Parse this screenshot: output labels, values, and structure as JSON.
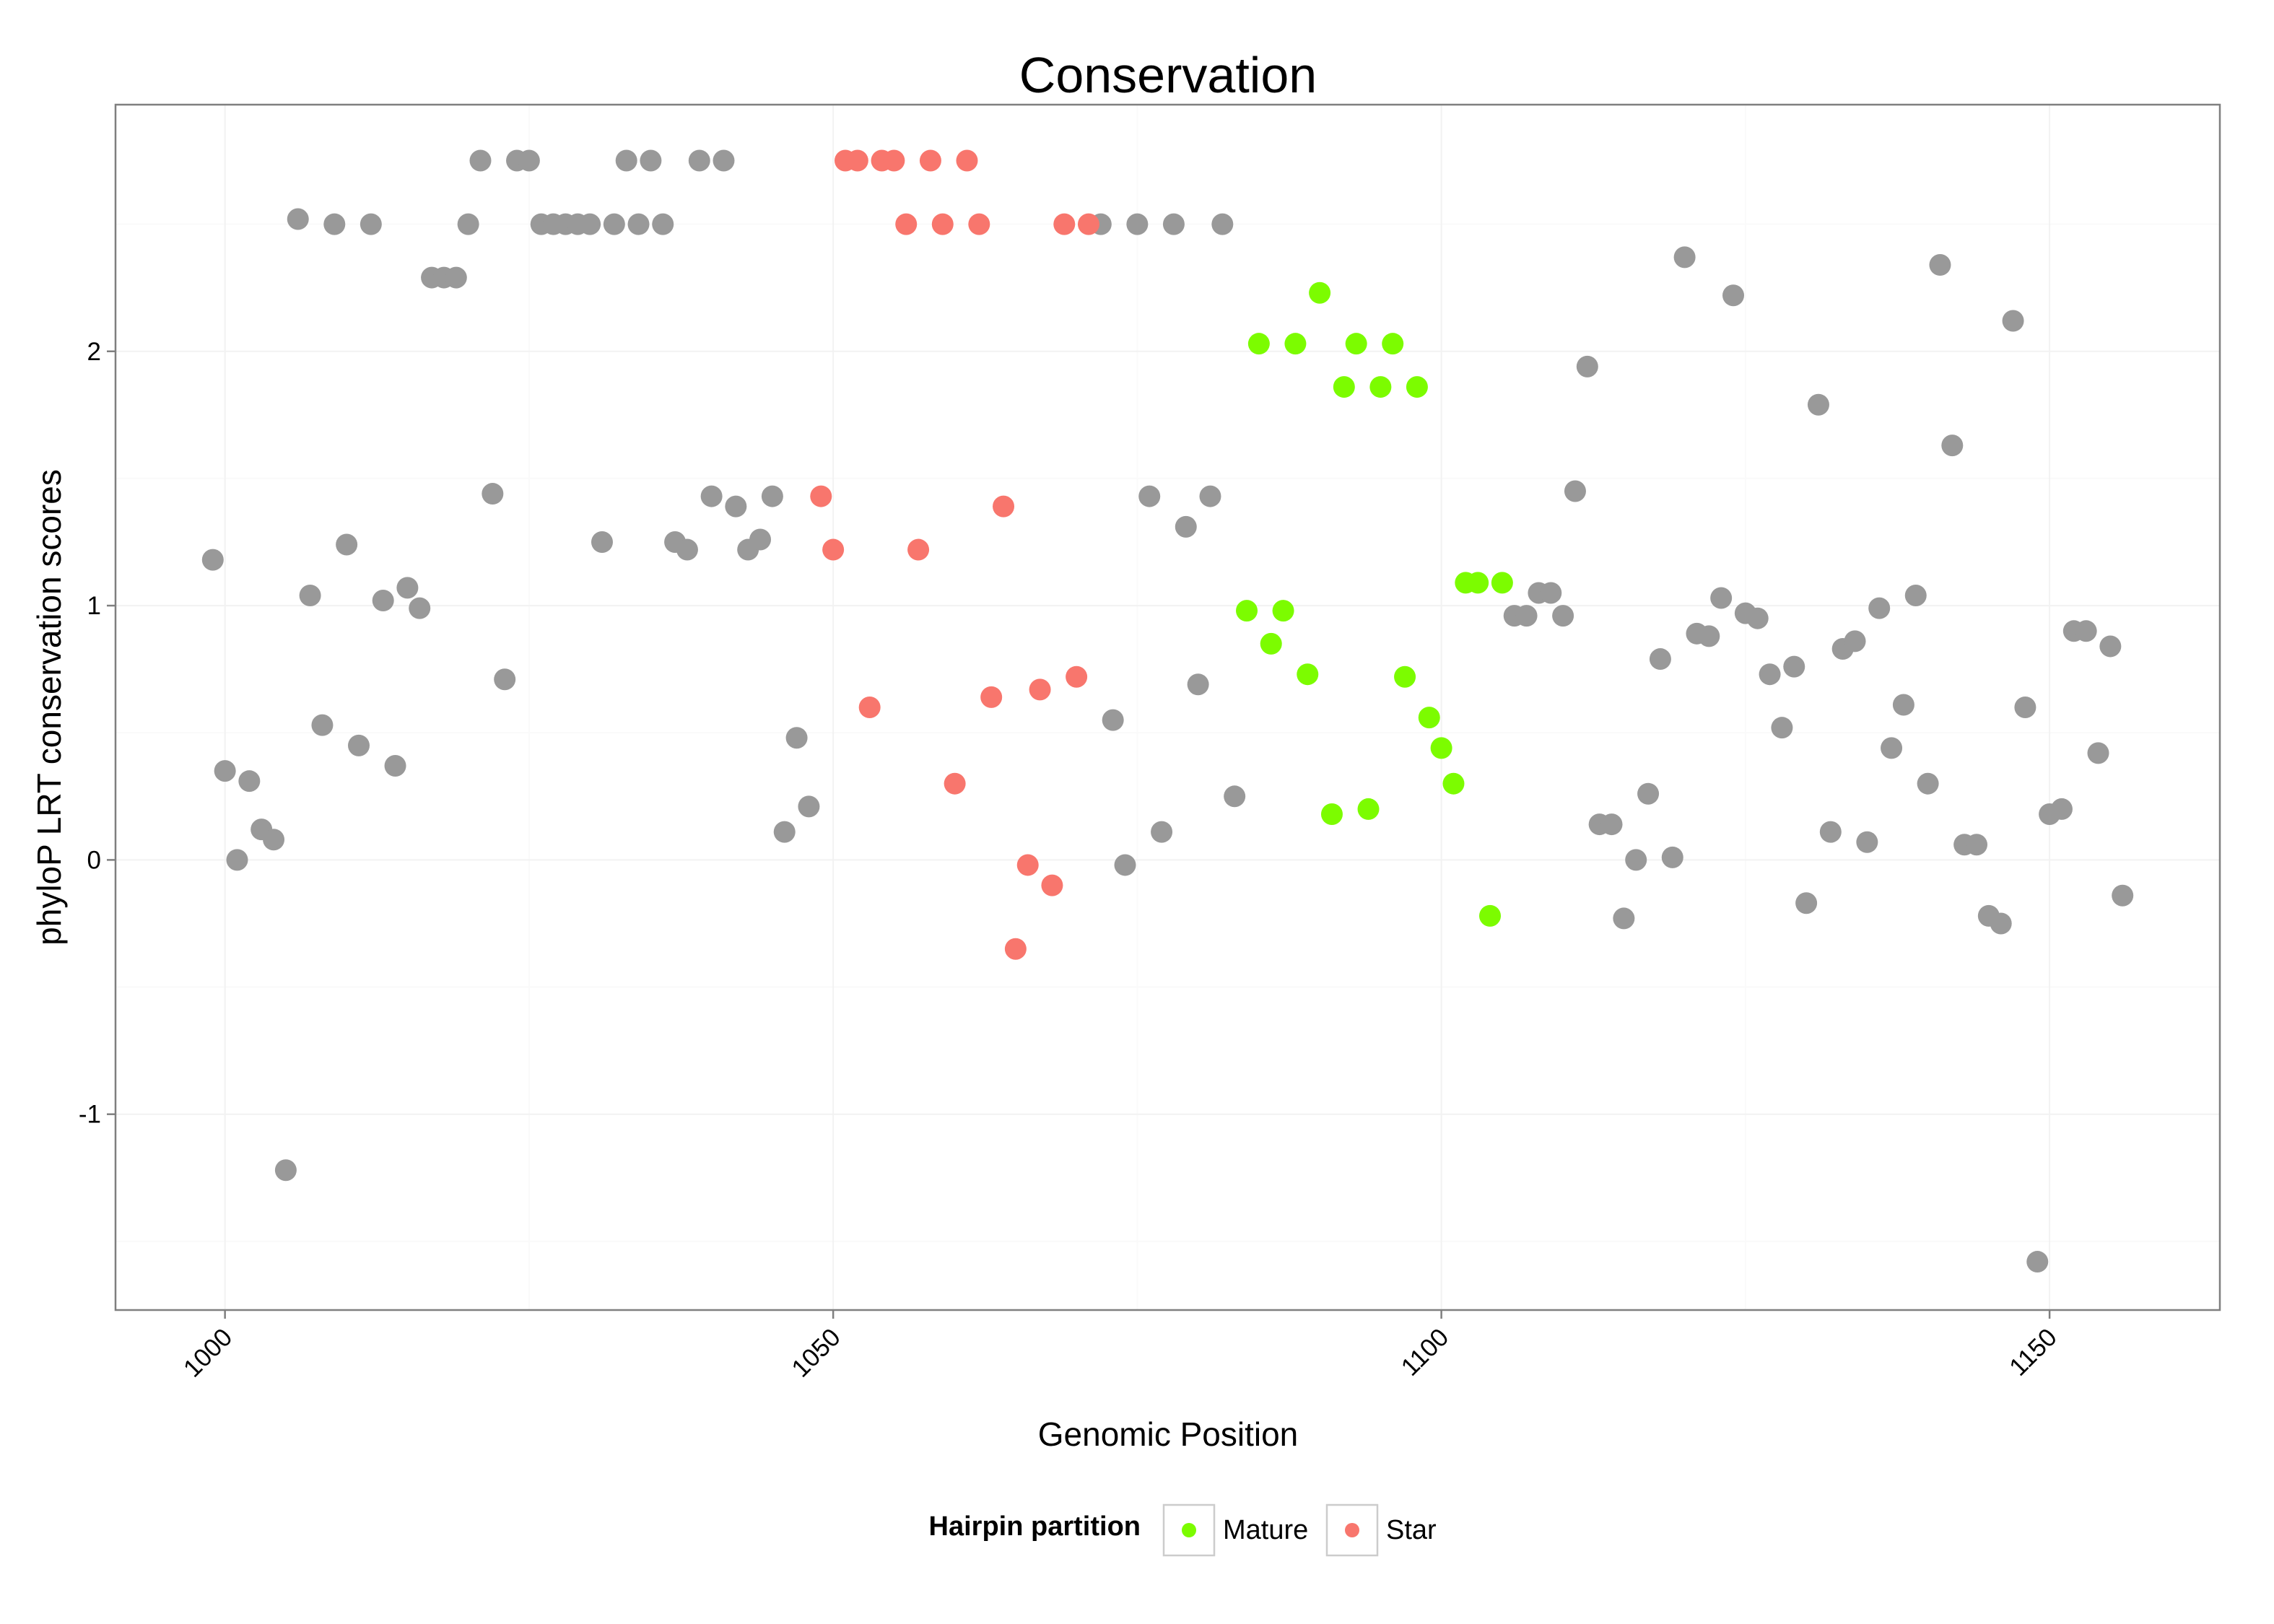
{
  "chart_data": {
    "type": "scatter",
    "title": "Conservation",
    "xlabel": "Genomic Position",
    "ylabel": "phyloP LRT conservation scores",
    "xlim": [
      991,
      1164
    ],
    "ylim": [
      -1.77,
      2.97
    ],
    "x_ticks": [
      1000,
      1050,
      1100,
      1150
    ],
    "x_tick_labels": [
      "1000",
      "1050",
      "1100",
      "1150"
    ],
    "y_ticks": [
      -1,
      0,
      1,
      2
    ],
    "y_tick_labels": [
      "-1",
      "0",
      "1",
      "2"
    ],
    "grid": true,
    "legend": {
      "title": "Hairpin partition",
      "position": "bottom",
      "entries": [
        {
          "name": "Mature",
          "color": "#7cfc00"
        },
        {
          "name": "Star",
          "color": "#f8766d"
        }
      ]
    },
    "colors": {
      "Other": "#999999",
      "Mature": "#7cfc00",
      "Star": "#f8766d"
    },
    "series": [
      {
        "name": "Other",
        "points": [
          [
            999,
            1.18
          ],
          [
            1000,
            0.35
          ],
          [
            1001,
            0.0
          ],
          [
            1002,
            0.31
          ],
          [
            1003,
            0.12
          ],
          [
            1004,
            0.08
          ],
          [
            1005,
            -1.22
          ],
          [
            1006,
            2.52
          ],
          [
            1007,
            1.04
          ],
          [
            1008,
            0.53
          ],
          [
            1009,
            2.5
          ],
          [
            1010,
            1.24
          ],
          [
            1011,
            0.45
          ],
          [
            1012,
            2.5
          ],
          [
            1013,
            1.02
          ],
          [
            1014,
            0.37
          ],
          [
            1015,
            1.07
          ],
          [
            1016,
            0.99
          ],
          [
            1017,
            2.29
          ],
          [
            1018,
            2.29
          ],
          [
            1019,
            2.29
          ],
          [
            1020,
            2.5
          ],
          [
            1021,
            2.75
          ],
          [
            1022,
            1.44
          ],
          [
            1023,
            0.71
          ],
          [
            1024,
            2.75
          ],
          [
            1025,
            2.75
          ],
          [
            1026,
            2.5
          ],
          [
            1027,
            2.5
          ],
          [
            1028,
            2.5
          ],
          [
            1029,
            2.5
          ],
          [
            1030,
            2.5
          ],
          [
            1031,
            1.25
          ],
          [
            1032,
            2.5
          ],
          [
            1033,
            2.75
          ],
          [
            1034,
            2.5
          ],
          [
            1035,
            2.75
          ],
          [
            1036,
            2.5
          ],
          [
            1037,
            1.25
          ],
          [
            1038,
            1.22
          ],
          [
            1039,
            2.75
          ],
          [
            1040,
            1.43
          ],
          [
            1041,
            2.75
          ],
          [
            1042,
            1.39
          ],
          [
            1043,
            1.22
          ],
          [
            1044,
            1.26
          ],
          [
            1045,
            1.43
          ],
          [
            1046,
            0.11
          ],
          [
            1047,
            0.48
          ],
          [
            1048,
            0.21
          ],
          [
            1072,
            2.5
          ],
          [
            1073,
            0.55
          ],
          [
            1074,
            -0.02
          ],
          [
            1075,
            2.5
          ],
          [
            1076,
            1.43
          ],
          [
            1077,
            0.11
          ],
          [
            1078,
            2.5
          ],
          [
            1079,
            1.31
          ],
          [
            1080,
            0.69
          ],
          [
            1081,
            1.43
          ],
          [
            1082,
            2.5
          ],
          [
            1083,
            0.25
          ],
          [
            1106,
            0.96
          ],
          [
            1107,
            0.96
          ],
          [
            1108,
            1.05
          ],
          [
            1109,
            1.05
          ],
          [
            1110,
            0.96
          ],
          [
            1111,
            1.45
          ],
          [
            1112,
            1.94
          ],
          [
            1113,
            0.14
          ],
          [
            1114,
            0.14
          ],
          [
            1115,
            -0.23
          ],
          [
            1116,
            0.0
          ],
          [
            1117,
            0.26
          ],
          [
            1118,
            0.79
          ],
          [
            1119,
            0.01
          ],
          [
            1120,
            2.37
          ],
          [
            1121,
            0.89
          ],
          [
            1122,
            0.88
          ],
          [
            1123,
            1.03
          ],
          [
            1124,
            2.22
          ],
          [
            1125,
            0.97
          ],
          [
            1126,
            0.95
          ],
          [
            1127,
            0.73
          ],
          [
            1128,
            0.52
          ],
          [
            1129,
            0.76
          ],
          [
            1130,
            -0.17
          ],
          [
            1131,
            1.79
          ],
          [
            1132,
            0.11
          ],
          [
            1133,
            0.83
          ],
          [
            1134,
            0.86
          ],
          [
            1135,
            0.07
          ],
          [
            1136,
            0.99
          ],
          [
            1137,
            0.44
          ],
          [
            1138,
            0.61
          ],
          [
            1139,
            1.04
          ],
          [
            1140,
            0.3
          ],
          [
            1141,
            2.34
          ],
          [
            1142,
            1.63
          ],
          [
            1143,
            0.06
          ],
          [
            1144,
            0.06
          ],
          [
            1145,
            -0.22
          ],
          [
            1146,
            -0.25
          ],
          [
            1147,
            2.12
          ],
          [
            1148,
            0.6
          ],
          [
            1149,
            -1.58
          ],
          [
            1150,
            0.18
          ],
          [
            1151,
            0.2
          ],
          [
            1152,
            0.9
          ],
          [
            1153,
            0.9
          ],
          [
            1154,
            0.42
          ],
          [
            1155,
            0.84
          ],
          [
            1156,
            -0.14
          ]
        ]
      },
      {
        "name": "Mature",
        "points": [
          [
            1084,
            0.98
          ],
          [
            1085,
            2.03
          ],
          [
            1086,
            0.85
          ],
          [
            1087,
            0.98
          ],
          [
            1088,
            2.03
          ],
          [
            1089,
            0.73
          ],
          [
            1090,
            2.23
          ],
          [
            1091,
            0.18
          ],
          [
            1092,
            1.86
          ],
          [
            1093,
            2.03
          ],
          [
            1094,
            0.2
          ],
          [
            1095,
            1.86
          ],
          [
            1096,
            2.03
          ],
          [
            1097,
            0.72
          ],
          [
            1098,
            1.86
          ],
          [
            1099,
            0.56
          ],
          [
            1100,
            0.44
          ],
          [
            1101,
            0.3
          ],
          [
            1102,
            1.09
          ],
          [
            1103,
            1.09
          ],
          [
            1104,
            -0.22
          ],
          [
            1105,
            1.09
          ]
        ]
      },
      {
        "name": "Star",
        "points": [
          [
            1049,
            1.43
          ],
          [
            1050,
            1.22
          ],
          [
            1051,
            2.75
          ],
          [
            1052,
            2.75
          ],
          [
            1053,
            0.6
          ],
          [
            1054,
            2.75
          ],
          [
            1055,
            2.75
          ],
          [
            1056,
            2.5
          ],
          [
            1057,
            1.22
          ],
          [
            1058,
            2.75
          ],
          [
            1059,
            2.5
          ],
          [
            1060,
            0.3
          ],
          [
            1061,
            2.75
          ],
          [
            1062,
            2.5
          ],
          [
            1063,
            0.64
          ],
          [
            1064,
            1.39
          ],
          [
            1065,
            -0.35
          ],
          [
            1066,
            -0.02
          ],
          [
            1067,
            0.67
          ],
          [
            1068,
            -0.1
          ],
          [
            1069,
            2.5
          ],
          [
            1070,
            0.72
          ],
          [
            1071,
            2.5
          ]
        ]
      }
    ]
  }
}
